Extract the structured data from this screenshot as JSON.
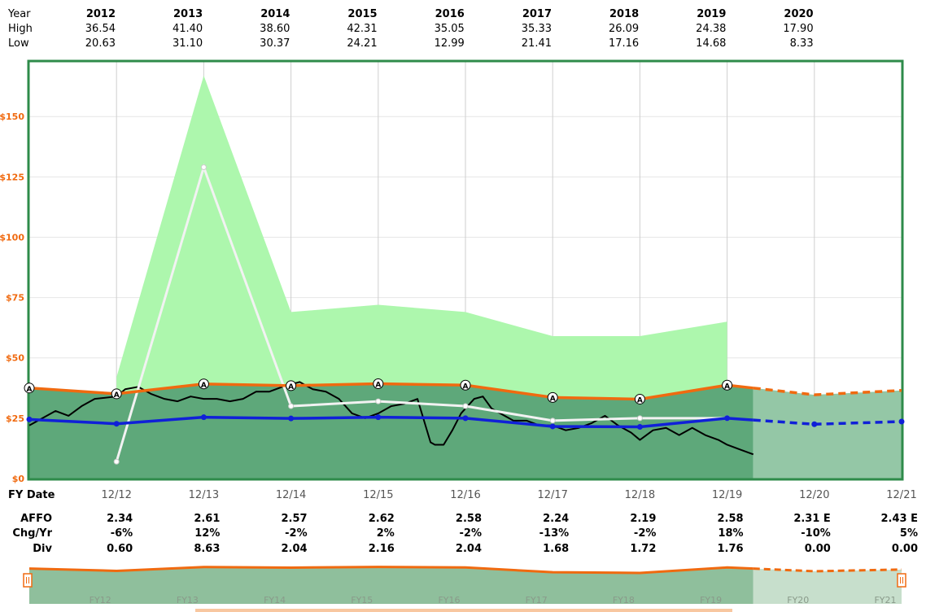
{
  "stats": {
    "year_label": "Year",
    "high_label": "High",
    "low_label": "Low",
    "years": [
      "2012",
      "2013",
      "2014",
      "2015",
      "2016",
      "2017",
      "2018",
      "2019",
      "2020"
    ],
    "high": [
      "36.54",
      "41.40",
      "38.60",
      "42.31",
      "35.05",
      "35.33",
      "26.09",
      "24.38",
      "17.90"
    ],
    "low": [
      "20.63",
      "31.10",
      "30.37",
      "24.21",
      "12.99",
      "21.41",
      "17.16",
      "14.68",
      "8.33"
    ]
  },
  "colors": {
    "frame": "#2e8b4a",
    "dark_fill": "#5ea87a",
    "light_fill": "#adf7ad",
    "forecast_fill": "#94c7a6",
    "orange": "#f06a10",
    "blue": "#1020d8",
    "white_line": "#f2f2f2",
    "price": "#000000"
  },
  "chart_data": {
    "type": "area",
    "y_ticks": [
      "$0",
      "$25",
      "$50",
      "$75",
      "$100",
      "$125",
      "$150"
    ],
    "y_values": [
      0,
      25,
      50,
      75,
      100,
      125,
      150
    ],
    "ylim": [
      0,
      172
    ],
    "x_label": "FY Date",
    "x_ticks": [
      "12/12",
      "12/13",
      "12/14",
      "12/15",
      "12/16",
      "12/17",
      "12/18",
      "12/19",
      "12/20",
      "12/21"
    ],
    "grid": true,
    "series": [
      {
        "role": "orange_affo_line",
        "x": [
          2011.0,
          2012.0,
          2013.0,
          2014.0,
          2015.0,
          2016.0,
          2017.0,
          2018.0,
          2019.0,
          2020.0,
          2021.0
        ],
        "values": [
          37.5,
          35.1,
          39.2,
          38.5,
          39.3,
          38.7,
          33.6,
          32.9,
          38.7,
          34.7,
          36.5
        ],
        "forecast_from_index": 9
      },
      {
        "role": "blue_line",
        "x": [
          2011.0,
          2012.0,
          2013.0,
          2014.0,
          2015.0,
          2016.0,
          2017.0,
          2018.0,
          2019.0,
          2020.0,
          2021.0
        ],
        "values": [
          24.5,
          22.7,
          25.4,
          24.9,
          25.4,
          25.0,
          21.6,
          21.4,
          25.0,
          22.5,
          23.6
        ],
        "forecast_from_index": 9
      },
      {
        "role": "light_green_band_top",
        "x": [
          2012.0,
          2013.0,
          2014.0,
          2015.0,
          2016.0,
          2017.0,
          2018.0,
          2019.0
        ],
        "values": [
          42,
          167,
          69,
          72,
          69,
          59,
          59,
          65
        ]
      },
      {
        "role": "white_line",
        "x": [
          2012.0,
          2013.0,
          2014.0,
          2015.0,
          2016.0,
          2017.0,
          2018.0,
          2019.0
        ],
        "values": [
          7,
          129,
          30,
          32,
          30,
          24,
          25,
          25
        ]
      },
      {
        "role": "price_line",
        "x": [
          2011.0,
          2011.15,
          2011.3,
          2011.45,
          2011.6,
          2011.75,
          2012.0,
          2012.1,
          2012.25,
          2012.4,
          2012.55,
          2012.7,
          2012.85,
          2013.0,
          2013.15,
          2013.3,
          2013.45,
          2013.6,
          2013.75,
          2013.9,
          2014.0,
          2014.1,
          2014.25,
          2014.4,
          2014.55,
          2014.7,
          2014.85,
          2015.0,
          2015.15,
          2015.3,
          2015.45,
          2015.6,
          2015.65,
          2015.75,
          2015.85,
          2015.95,
          2016.1,
          2016.2,
          2016.3,
          2016.4,
          2016.55,
          2016.7,
          2016.85,
          2017.0,
          2017.15,
          2017.3,
          2017.45,
          2017.6,
          2017.75,
          2017.9,
          2018.0,
          2018.15,
          2018.3,
          2018.45,
          2018.6,
          2018.75,
          2018.9,
          2019.0,
          2019.15,
          2019.3
        ],
        "values": [
          22,
          25,
          28,
          26,
          30,
          33,
          34,
          37,
          38,
          35,
          33,
          32,
          34,
          33,
          33,
          32,
          33,
          36,
          36,
          38,
          39,
          40,
          37,
          36,
          33,
          27,
          25,
          27,
          30,
          31,
          33,
          15,
          14,
          14,
          20,
          27,
          33,
          34,
          29,
          27,
          24,
          24,
          22,
          22,
          20,
          21,
          23,
          26,
          22,
          19,
          16,
          20,
          21,
          18,
          21,
          18,
          16,
          14,
          12,
          10
        ]
      }
    ],
    "markers": {
      "label": "A",
      "x": [
        2011.0,
        2012.0,
        2013.0,
        2014.0,
        2015.0,
        2016.0,
        2017.0,
        2018.0,
        2019.0
      ]
    }
  },
  "metrics": {
    "affo_label": "AFFO",
    "chg_label": "Chg/Yr",
    "div_label": "Div",
    "affo": [
      "2.34",
      "2.61",
      "2.57",
      "2.62",
      "2.58",
      "2.24",
      "2.19",
      "2.58",
      "2.31 E",
      "2.43 E"
    ],
    "chg": [
      "-6%",
      "12%",
      "-2%",
      "2%",
      "-2%",
      "-13%",
      "-2%",
      "18%",
      "-10%",
      "5%"
    ],
    "div": [
      "0.60",
      "8.63",
      "2.04",
      "2.16",
      "2.04",
      "1.68",
      "1.72",
      "1.76",
      "0.00",
      "0.00"
    ]
  },
  "navigator": {
    "labels": [
      "FY12",
      "FY13",
      "FY14",
      "FY15",
      "FY16",
      "FY17",
      "FY18",
      "FY19",
      "FY20",
      "FY21"
    ]
  }
}
